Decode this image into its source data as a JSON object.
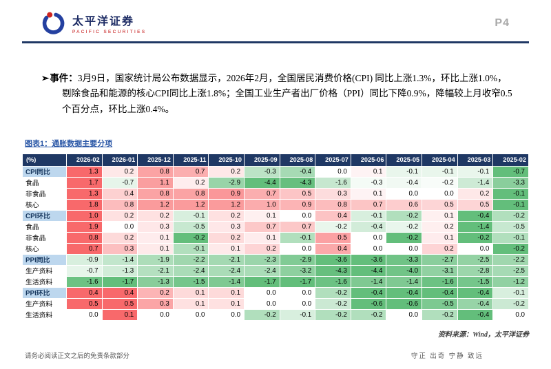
{
  "header": {
    "brand_cn": "太平洋证券",
    "brand_en": "PACIFIC SECURITIES",
    "page_number": "P4",
    "brand_navy": "#1B2A63",
    "brand_red": "#C00000"
  },
  "event": {
    "bullet": "➢",
    "label": "事件：",
    "text": "3月9日，国家统计局公布数据显示，2026年2月，全国居民消费价格(CPI) 同比上涨1.3%，环比上涨1.0%，剔除食品和能源的核心CPI同比上涨1.8%；全国工业生产者出厂价格（PPI）同比下降0.9%，降幅较上月收窄0.5个百分点，环比上涨0.4%。"
  },
  "figure": {
    "title": "图表1：通胀数据主要分项",
    "source": "资料来源：Wind，太平洋证券"
  },
  "chart_data": {
    "type": "heatmap",
    "title": "通胀数据主要分项",
    "unit_label": "(%)",
    "columns": [
      "2026-02",
      "2026-01",
      "2025-12",
      "2025-11",
      "2025-10",
      "2025-09",
      "2025-08",
      "2025-07",
      "2025-06",
      "2025-05",
      "2025-04",
      "2025-03",
      "2025-02"
    ],
    "rows": [
      {
        "label": "CPI同比",
        "group": true,
        "values": [
          1.3,
          0.2,
          0.8,
          0.7,
          0.2,
          -0.3,
          -0.4,
          0.0,
          0.1,
          -0.1,
          -0.1,
          -0.1,
          -0.7
        ]
      },
      {
        "label": "食品",
        "group": false,
        "values": [
          1.7,
          -0.7,
          1.1,
          0.2,
          -2.9,
          -4.4,
          -4.3,
          -1.6,
          -0.3,
          -0.4,
          -0.2,
          -1.4,
          -3.3
        ]
      },
      {
        "label": "非食品",
        "group": false,
        "values": [
          1.3,
          0.4,
          0.8,
          0.8,
          0.9,
          0.7,
          0.5,
          0.3,
          0.1,
          0.0,
          0.0,
          0.2,
          -0.1
        ]
      },
      {
        "label": "核心",
        "group": false,
        "values": [
          1.8,
          0.8,
          1.2,
          1.2,
          1.2,
          1.0,
          0.9,
          0.8,
          0.7,
          0.6,
          0.5,
          0.5,
          -0.1
        ]
      },
      {
        "label": "CPI环比",
        "group": true,
        "values": [
          1.0,
          0.2,
          0.2,
          -0.1,
          0.2,
          0.1,
          0.0,
          0.4,
          -0.1,
          -0.2,
          0.1,
          -0.4,
          -0.2
        ]
      },
      {
        "label": "食品",
        "group": false,
        "values": [
          1.9,
          0.0,
          0.3,
          -0.5,
          0.3,
          0.7,
          0.7,
          -0.2,
          -0.4,
          -0.2,
          0.2,
          -1.4,
          -0.5
        ]
      },
      {
        "label": "非食品",
        "group": false,
        "values": [
          0.8,
          0.2,
          0.1,
          -0.2,
          0.2,
          0.1,
          -0.1,
          0.5,
          0.0,
          -0.2,
          0.1,
          -0.2,
          -0.1
        ]
      },
      {
        "label": "核心",
        "group": false,
        "values": [
          0.7,
          0.3,
          0.1,
          -0.1,
          0.1,
          0.2,
          0.0,
          0.4,
          0.0,
          0.0,
          0.2,
          0.0,
          -0.2
        ]
      },
      {
        "label": "PPI同比",
        "group": true,
        "values": [
          -0.9,
          -1.4,
          -1.9,
          -2.2,
          -2.1,
          -2.3,
          -2.9,
          -3.6,
          -3.6,
          -3.3,
          -2.7,
          -2.5,
          -2.2
        ]
      },
      {
        "label": "生产资料",
        "group": false,
        "values": [
          -0.7,
          -1.3,
          -2.1,
          -2.4,
          -2.4,
          -2.4,
          -3.2,
          -4.3,
          -4.4,
          -4.0,
          -3.1,
          -2.8,
          -2.5
        ]
      },
      {
        "label": "生活资料",
        "group": false,
        "values": [
          -1.6,
          -1.7,
          -1.3,
          -1.5,
          -1.4,
          -1.7,
          -1.7,
          -1.6,
          -1.4,
          -1.4,
          -1.6,
          -1.5,
          -1.2
        ]
      },
      {
        "label": "PPI环比",
        "group": true,
        "values": [
          0.4,
          0.4,
          0.2,
          0.1,
          0.1,
          0.0,
          0.0,
          -0.2,
          -0.4,
          -0.4,
          -0.4,
          -0.4,
          -0.1
        ]
      },
      {
        "label": "生产资料",
        "group": false,
        "values": [
          0.5,
          0.5,
          0.3,
          0.1,
          0.1,
          0.0,
          0.0,
          -0.2,
          -0.6,
          -0.6,
          -0.5,
          -0.4,
          -0.2
        ]
      },
      {
        "label": "生活资料",
        "group": false,
        "values": [
          0.0,
          0.1,
          0.0,
          0.0,
          0.0,
          -0.2,
          -0.1,
          -0.2,
          -0.2,
          0.0,
          -0.2,
          -0.4,
          0.0
        ]
      }
    ],
    "colors": {
      "positive_max": "#F8696B",
      "negative_max": "#63BE7B",
      "neutral": "#FFFFFF",
      "header_bg": "#1F3864",
      "group_row_bg": "#BDD7EE"
    },
    "scale_note": "per-row scale: row max -> full red, row min(negative) -> full green, 0 -> white"
  },
  "footer": {
    "disclaimer": "请务必阅读正文之后的免责条款部分",
    "motto": "守正 出奇 宁静 致远"
  }
}
